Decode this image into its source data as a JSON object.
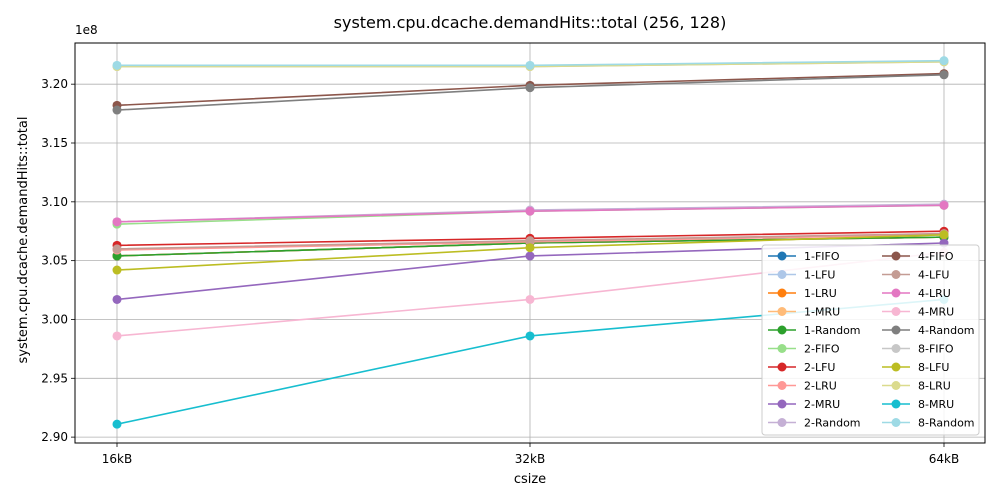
{
  "chart_data": {
    "type": "line",
    "title": "system.cpu.dcache.demandHits::total (256, 128)",
    "xlabel": "csize",
    "ylabel": "system.cpu.dcache.demandHits::total",
    "categories": [
      "16kB",
      "32kB",
      "64kB"
    ],
    "y_scale_label": "1e8",
    "yticks": [
      "2.90",
      "2.95",
      "3.00",
      "3.05",
      "3.10",
      "3.15",
      "3.20"
    ],
    "ylim": [
      2.895,
      3.235
    ],
    "grid": true,
    "legend_position": "lower-right",
    "series": [
      {
        "name": "1-FIFO",
        "color": "#1f77b4",
        "values": [
          3.054,
          3.065,
          3.07
        ]
      },
      {
        "name": "1-LFU",
        "color": "#aec7e8",
        "values": [
          3.054,
          3.065,
          3.07
        ]
      },
      {
        "name": "1-LRU",
        "color": "#ff7f0e",
        "values": [
          3.054,
          3.065,
          3.07
        ]
      },
      {
        "name": "1-MRU",
        "color": "#ffbb78",
        "values": [
          3.054,
          3.065,
          3.07
        ]
      },
      {
        "name": "1-Random",
        "color": "#2ca02c",
        "values": [
          3.054,
          3.065,
          3.07
        ]
      },
      {
        "name": "2-FIFO",
        "color": "#98df8a",
        "values": [
          3.081,
          3.092,
          3.097
        ]
      },
      {
        "name": "2-LFU",
        "color": "#d62728",
        "values": [
          3.063,
          3.069,
          3.075
        ]
      },
      {
        "name": "2-LRU",
        "color": "#ff9896",
        "values": [
          3.059,
          3.066,
          3.072
        ]
      },
      {
        "name": "2-MRU",
        "color": "#9467bd",
        "values": [
          3.017,
          3.054,
          3.065
        ]
      },
      {
        "name": "2-Random",
        "color": "#c5b0d5",
        "values": [
          3.083,
          3.093,
          3.098
        ]
      },
      {
        "name": "4-FIFO",
        "color": "#8c564b",
        "values": [
          3.182,
          3.199,
          3.209
        ]
      },
      {
        "name": "4-LFU",
        "color": "#c49c94",
        "values": [
          3.06,
          3.067,
          3.073
        ]
      },
      {
        "name": "4-LRU",
        "color": "#e377c2",
        "values": [
          3.083,
          3.092,
          3.097
        ]
      },
      {
        "name": "4-MRU",
        "color": "#f7b6d2",
        "values": [
          2.986,
          3.017,
          3.057
        ]
      },
      {
        "name": "4-Random",
        "color": "#7f7f7f",
        "values": [
          3.178,
          3.197,
          3.208
        ]
      },
      {
        "name": "8-FIFO",
        "color": "#c7c7c7",
        "values": [
          3.215,
          3.215,
          3.219
        ]
      },
      {
        "name": "8-LFU",
        "color": "#bcbd22",
        "values": [
          3.042,
          3.061,
          3.072
        ]
      },
      {
        "name": "8-LRU",
        "color": "#dbdb8d",
        "values": [
          3.215,
          3.215,
          3.219
        ]
      },
      {
        "name": "8-MRU",
        "color": "#17becf",
        "values": [
          2.911,
          2.986,
          3.017
        ]
      },
      {
        "name": "8-Random",
        "color": "#9edae5",
        "values": [
          3.216,
          3.216,
          3.22
        ]
      }
    ]
  }
}
